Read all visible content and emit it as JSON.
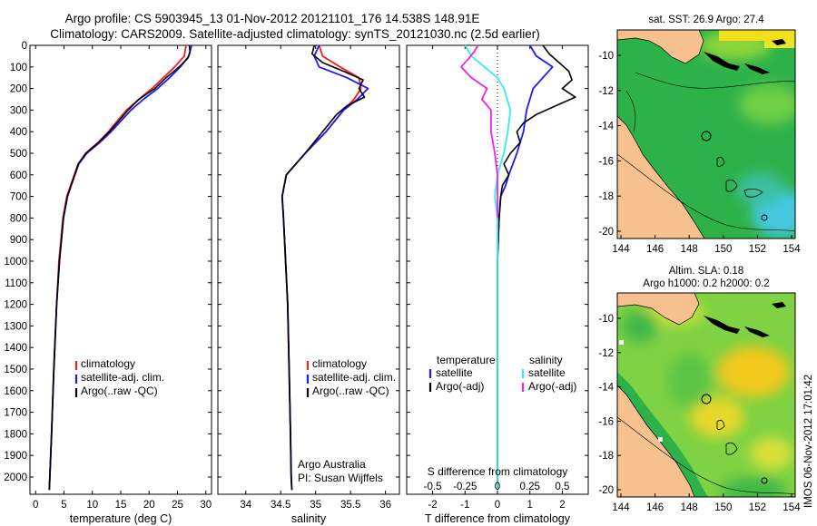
{
  "header": {
    "line1": "Argo profile: CS 5903945_13 01-Nov-2012 20121101_176 14.538S 148.91E",
    "line2": "Climatology: CARS2009. Satellite-adjusted climatology: synTS_20121030.nc (2.5d earlier)"
  },
  "colors": {
    "climatology": "#ff1a1a",
    "satellite": "#1a1aff",
    "argo": "#000000",
    "satellite_salinity": "#33eeee",
    "argo_salinity_adj": "#ee22ee",
    "land": "#f7c08f",
    "ocean_green": "#2db24a",
    "warm_yellow": "#f2e01e"
  },
  "chart_data": [
    {
      "type": "line",
      "id": "temperature_profile",
      "xlabel": "temperature (deg C)",
      "ylabel": "",
      "xlim": [
        -1,
        31
      ],
      "ylim": [
        2080,
        0
      ],
      "xticks": [
        0,
        5,
        10,
        15,
        20,
        25,
        30
      ],
      "yticks": [
        0,
        100,
        200,
        300,
        400,
        500,
        600,
        700,
        800,
        900,
        1000,
        1100,
        1200,
        1300,
        1400,
        1500,
        1600,
        1700,
        1800,
        1900,
        2000
      ],
      "legend": [
        "climatology",
        "satellite-adj. clim.",
        "Argo(..raw -QC)"
      ],
      "legend_position": "lower-center",
      "series": [
        {
          "name": "climatology",
          "color": "#ff1a1a",
          "depth": [
            0,
            50,
            100,
            150,
            200,
            250,
            300,
            400,
            450,
            500,
            550,
            600,
            700,
            800,
            1000,
            1200,
            1500,
            1800,
            2000,
            2060
          ],
          "values": [
            26.5,
            26.2,
            24.5,
            22.5,
            20.5,
            18.2,
            16.0,
            12.8,
            11.0,
            8.8,
            7.5,
            6.8,
            5.5,
            4.8,
            4.1,
            3.7,
            3.2,
            2.8,
            2.5,
            2.4
          ]
        },
        {
          "name": "satellite-adj. clim.",
          "color": "#1a1aff",
          "depth": [
            0,
            50,
            100,
            150,
            200,
            250,
            300,
            400,
            450,
            500,
            550,
            600,
            700,
            800,
            1000,
            1200,
            1500,
            1800,
            2000,
            2060
          ],
          "values": [
            27.5,
            27.0,
            25.5,
            23.6,
            21.5,
            19.0,
            16.8,
            13.3,
            11.3,
            9.0,
            7.6,
            6.9,
            5.6,
            4.9,
            4.2,
            3.7,
            3.2,
            2.8,
            2.5,
            2.4
          ]
        },
        {
          "name": "Argo(..raw -QC)",
          "color": "#000000",
          "depth": [
            0,
            30,
            60,
            100,
            150,
            200,
            250,
            300,
            400,
            450,
            500,
            550,
            600,
            700,
            800,
            1000,
            1200,
            1500,
            1800,
            2000,
            2060
          ],
          "values": [
            27.1,
            27.2,
            26.8,
            25.3,
            23.0,
            21.0,
            18.2,
            16.3,
            13.0,
            11.1,
            8.9,
            7.5,
            6.9,
            5.6,
            4.9,
            4.2,
            3.7,
            3.2,
            2.8,
            2.5,
            2.4
          ]
        }
      ]
    },
    {
      "type": "line",
      "id": "salinity_profile",
      "xlabel": "salinity",
      "xlim": [
        33.6,
        36.2
      ],
      "ylim": [
        2080,
        0
      ],
      "xticks": [
        34,
        34.5,
        35,
        35.5,
        36
      ],
      "legend": [
        "climatology",
        "satellite-adj. clim.",
        "Argo(..raw -QC)"
      ],
      "legend_position": "lower-center",
      "annotation": [
        "Argo Australia",
        "PI: Susan Wijffels"
      ],
      "series": [
        {
          "name": "climatology",
          "color": "#ff1a1a",
          "depth": [
            0,
            50,
            100,
            150,
            200,
            250,
            300,
            400,
            500,
            600,
            700,
            800,
            1000,
            1200,
            1500,
            1800,
            2000,
            2060
          ],
          "values": [
            35.05,
            35.1,
            35.35,
            35.62,
            35.65,
            35.55,
            35.4,
            35.15,
            34.85,
            34.58,
            34.52,
            34.54,
            34.57,
            34.6,
            34.62,
            34.64,
            34.65,
            34.66
          ]
        },
        {
          "name": "satellite-adj. clim.",
          "color": "#1a1aff",
          "depth": [
            0,
            50,
            100,
            150,
            200,
            250,
            300,
            400,
            500,
            600,
            700,
            800,
            1000,
            1200,
            1500,
            1800,
            2000,
            2060
          ],
          "values": [
            35.05,
            34.98,
            35.05,
            35.45,
            35.75,
            35.6,
            35.4,
            35.15,
            34.85,
            34.58,
            34.52,
            34.54,
            34.57,
            34.6,
            34.62,
            34.64,
            34.65,
            34.66
          ]
        },
        {
          "name": "Argo(..raw -QC)",
          "color": "#000000",
          "depth": [
            0,
            40,
            80,
            120,
            160,
            200,
            240,
            280,
            320,
            400,
            500,
            600,
            700,
            800,
            1000,
            1200,
            1500,
            1800,
            2000,
            2060
          ],
          "values": [
            34.98,
            34.95,
            35.1,
            35.4,
            35.68,
            35.62,
            35.7,
            35.45,
            35.3,
            35.1,
            34.85,
            34.58,
            34.52,
            34.54,
            34.57,
            34.6,
            34.62,
            34.64,
            34.65,
            34.66
          ]
        }
      ]
    },
    {
      "type": "line",
      "id": "difference_profile",
      "xlabel": "T difference from climatology",
      "xlabel_top": "S difference from climatology",
      "xlim": [
        -2.8,
        2.8
      ],
      "ylim": [
        2080,
        0
      ],
      "xticks": [
        -2,
        -1,
        0,
        1,
        2
      ],
      "xtick_labels": [
        "-2",
        "-1",
        "0",
        "1",
        "2"
      ],
      "sticks": [
        -0.5,
        -0.25,
        0,
        0.25,
        0.5
      ],
      "stick_labels": [
        "-0.5",
        "-0.25",
        "0",
        "0.25",
        "0.5"
      ],
      "legend_left_title": "temperature",
      "legend_right_title": "salinity",
      "legend": [
        "satellite",
        "Argo(-adj)",
        "satellite",
        "Argo(-adj)"
      ],
      "series": [
        {
          "name": "temperature satellite",
          "color": "#1a1aff",
          "depth": [
            0,
            50,
            100,
            150,
            200,
            300,
            400,
            500,
            600,
            650,
            700,
            800,
            1000,
            1500,
            2000,
            2060
          ],
          "values": [
            1.0,
            1.2,
            1.7,
            1.4,
            1.1,
            0.9,
            0.8,
            0.6,
            0.35,
            0.25,
            0.1,
            0.05,
            0.0,
            0.0,
            0.0,
            0.0
          ]
        },
        {
          "name": "temperature Argo(-adj)",
          "color": "#000000",
          "depth": [
            0,
            40,
            80,
            120,
            160,
            200,
            240,
            280,
            320,
            360,
            400,
            450,
            500,
            550,
            600,
            650,
            700,
            800,
            1000,
            1500,
            2000,
            2060
          ],
          "values": [
            1.4,
            1.6,
            1.9,
            2.2,
            2.3,
            2.0,
            2.4,
            1.8,
            1.2,
            0.8,
            0.6,
            0.7,
            0.4,
            0.2,
            0.35,
            0.15,
            0.1,
            0.05,
            0.0,
            0.0,
            0.0,
            0.0
          ]
        },
        {
          "name": "salinity satellite",
          "color": "#33eeee",
          "depth": [
            0,
            50,
            100,
            150,
            200,
            300,
            400,
            500,
            600,
            700,
            800,
            1000,
            1400,
            2000,
            2060
          ],
          "values": [
            -0.25,
            -0.2,
            -0.1,
            0.0,
            0.05,
            0.1,
            0.08,
            0.05,
            0.0,
            -0.02,
            0.0,
            0.0,
            0.0,
            0.0,
            0.0
          ]
        },
        {
          "name": "salinity Argo(-adj)",
          "color": "#ee22ee",
          "depth": [
            0,
            30,
            60,
            100,
            150,
            200,
            250,
            300,
            400,
            500,
            600,
            700,
            800
          ],
          "values": [
            -0.15,
            -0.18,
            -0.22,
            -0.28,
            -0.2,
            -0.08,
            -0.12,
            -0.05,
            -0.05,
            -0.02,
            0.0,
            0.0,
            0.0
          ]
        }
      ]
    }
  ],
  "maps": {
    "sst": {
      "title": "sat. SST: 26.9 Argo: 27.4",
      "xticks": [
        "144",
        "146",
        "148",
        "150",
        "152",
        "154"
      ],
      "yticks": [
        "-10",
        "-12",
        "-14",
        "-16",
        "-18",
        "-20"
      ]
    },
    "sla": {
      "title1": "Altim. SLA: 0.18",
      "title2": "Argo h1000: 0.2 h2000: 0.2",
      "xticks": [
        "144",
        "146",
        "148",
        "150",
        "152",
        "154"
      ],
      "yticks": [
        "-10",
        "-12",
        "-14",
        "-16",
        "-18",
        "-20"
      ]
    }
  },
  "footer": {
    "stamp": "IMOS 06-Nov-2012 17:01:42"
  }
}
